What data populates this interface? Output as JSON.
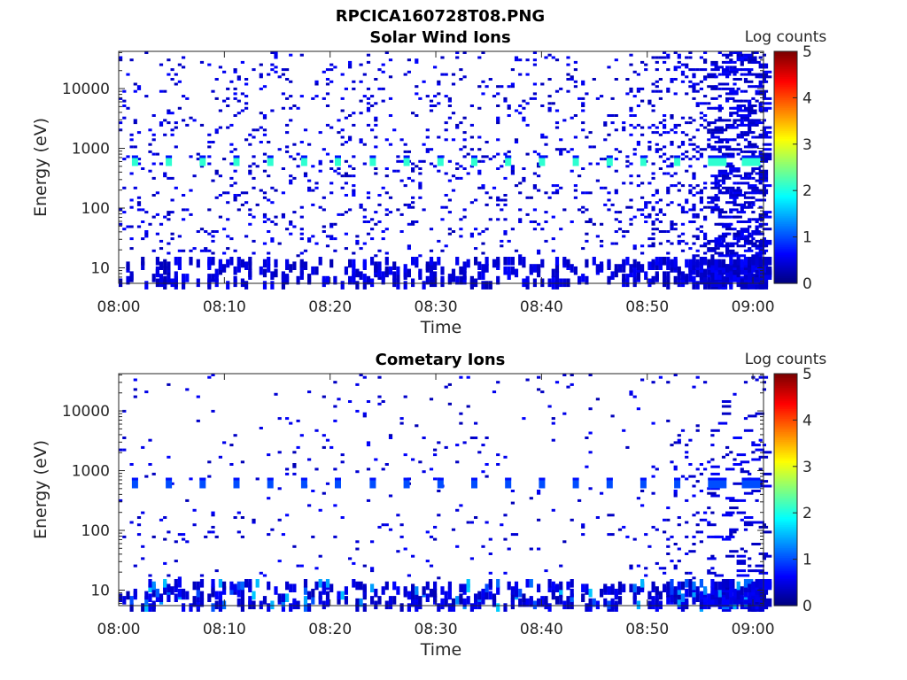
{
  "figure_title": "RPCICA160728T08.PNG",
  "chart_data": [
    {
      "type": "heatmap",
      "title": "Solar Wind Ions",
      "xlabel": "Time",
      "ylabel": "Energy (eV)",
      "x_ticks": [
        "08:00",
        "08:10",
        "08:20",
        "08:30",
        "08:40",
        "08:50",
        "09:00"
      ],
      "x_range": [
        "08:00",
        "09:01"
      ],
      "y_scale": "log",
      "y_ticks": [
        10,
        100,
        1000,
        10000
      ],
      "y_range": [
        5.5,
        42000
      ],
      "colorbar": {
        "label": "Log counts",
        "ticks": [
          0,
          1,
          2,
          3,
          4,
          5
        ],
        "range": [
          0,
          5
        ],
        "colormap": "jet"
      },
      "features": {
        "periodic_band_energy_eV": 620,
        "periodic_band_minutes": [
          1.5,
          4.7,
          7.9,
          11.1,
          14.3,
          17.5,
          20.7,
          24.0,
          27.2,
          30.4,
          33.6,
          36.8,
          40.0,
          43.2,
          46.4,
          49.6,
          52.8,
          56.0,
          59.2
        ],
        "periodic_band_log_counts": 2.1
      }
    },
    {
      "type": "heatmap",
      "title": "Cometary Ions",
      "xlabel": "Time",
      "ylabel": "Energy (eV)",
      "x_ticks": [
        "08:00",
        "08:10",
        "08:20",
        "08:30",
        "08:40",
        "08:50",
        "09:00"
      ],
      "x_range": [
        "08:00",
        "09:01"
      ],
      "y_scale": "log",
      "y_ticks": [
        10,
        100,
        1000,
        10000
      ],
      "y_range": [
        5.5,
        42000
      ],
      "colorbar": {
        "label": "Log counts",
        "ticks": [
          0,
          1,
          2,
          3,
          4,
          5
        ],
        "range": [
          0,
          5
        ],
        "colormap": "jet"
      },
      "features": {
        "periodic_band_energy_eV": 620,
        "periodic_band_minutes": [
          1.5,
          4.7,
          7.9,
          11.1,
          14.3,
          17.5,
          20.7,
          24.0,
          27.2,
          30.4,
          33.6,
          36.8,
          40.0,
          43.2,
          46.4,
          49.6,
          52.8,
          56.0,
          59.2
        ],
        "periodic_band_log_counts": 1.0
      }
    }
  ]
}
